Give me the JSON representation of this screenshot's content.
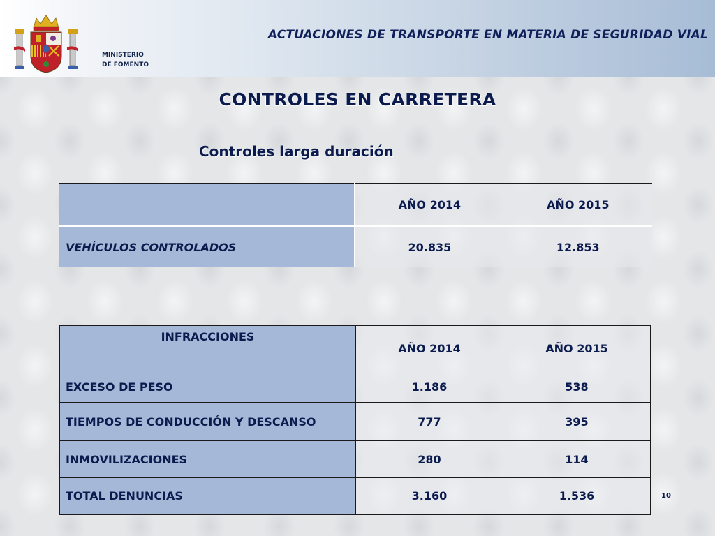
{
  "header": {
    "title": "ACTUACIONES DE TRANSPORTE EN MATERIA DE SEGURIDAD VIAL",
    "ministry_line1": "MINISTERIO",
    "ministry_line2": "DE FOMENTO",
    "emblem_icon": "spain-coat-of-arms-icon"
  },
  "slide": {
    "title": "CONTROLES EN CARRETERA",
    "subtitle": "Controles larga duración",
    "page_number": "10"
  },
  "table_controles": {
    "columns": [
      "",
      "AÑO 2014",
      "AÑO 2015"
    ],
    "row": {
      "label": "VEHÍCULOS CONTROLADOS",
      "values": [
        "20.835",
        "12.853"
      ]
    }
  },
  "table_infracciones": {
    "columns": [
      "INFRACCIONES",
      "AÑO 2014",
      "AÑO 2015"
    ],
    "rows": [
      {
        "label": "EXCESO DE PESO",
        "values": [
          "1.186",
          "538"
        ]
      },
      {
        "label": "TIEMPOS DE CONDUCCIÓN Y DESCANSO",
        "values": [
          "777",
          "395"
        ]
      },
      {
        "label": "INMOVILIZACIONES",
        "values": [
          "280",
          "114"
        ]
      },
      {
        "label": "TOTAL DENUNCIAS",
        "values": [
          "3.160",
          "1.536"
        ]
      }
    ]
  },
  "colors": {
    "label_cell": "#a5b8d8",
    "text": "#0b1b4e",
    "header_gradient_end": "#a7bcd6"
  }
}
